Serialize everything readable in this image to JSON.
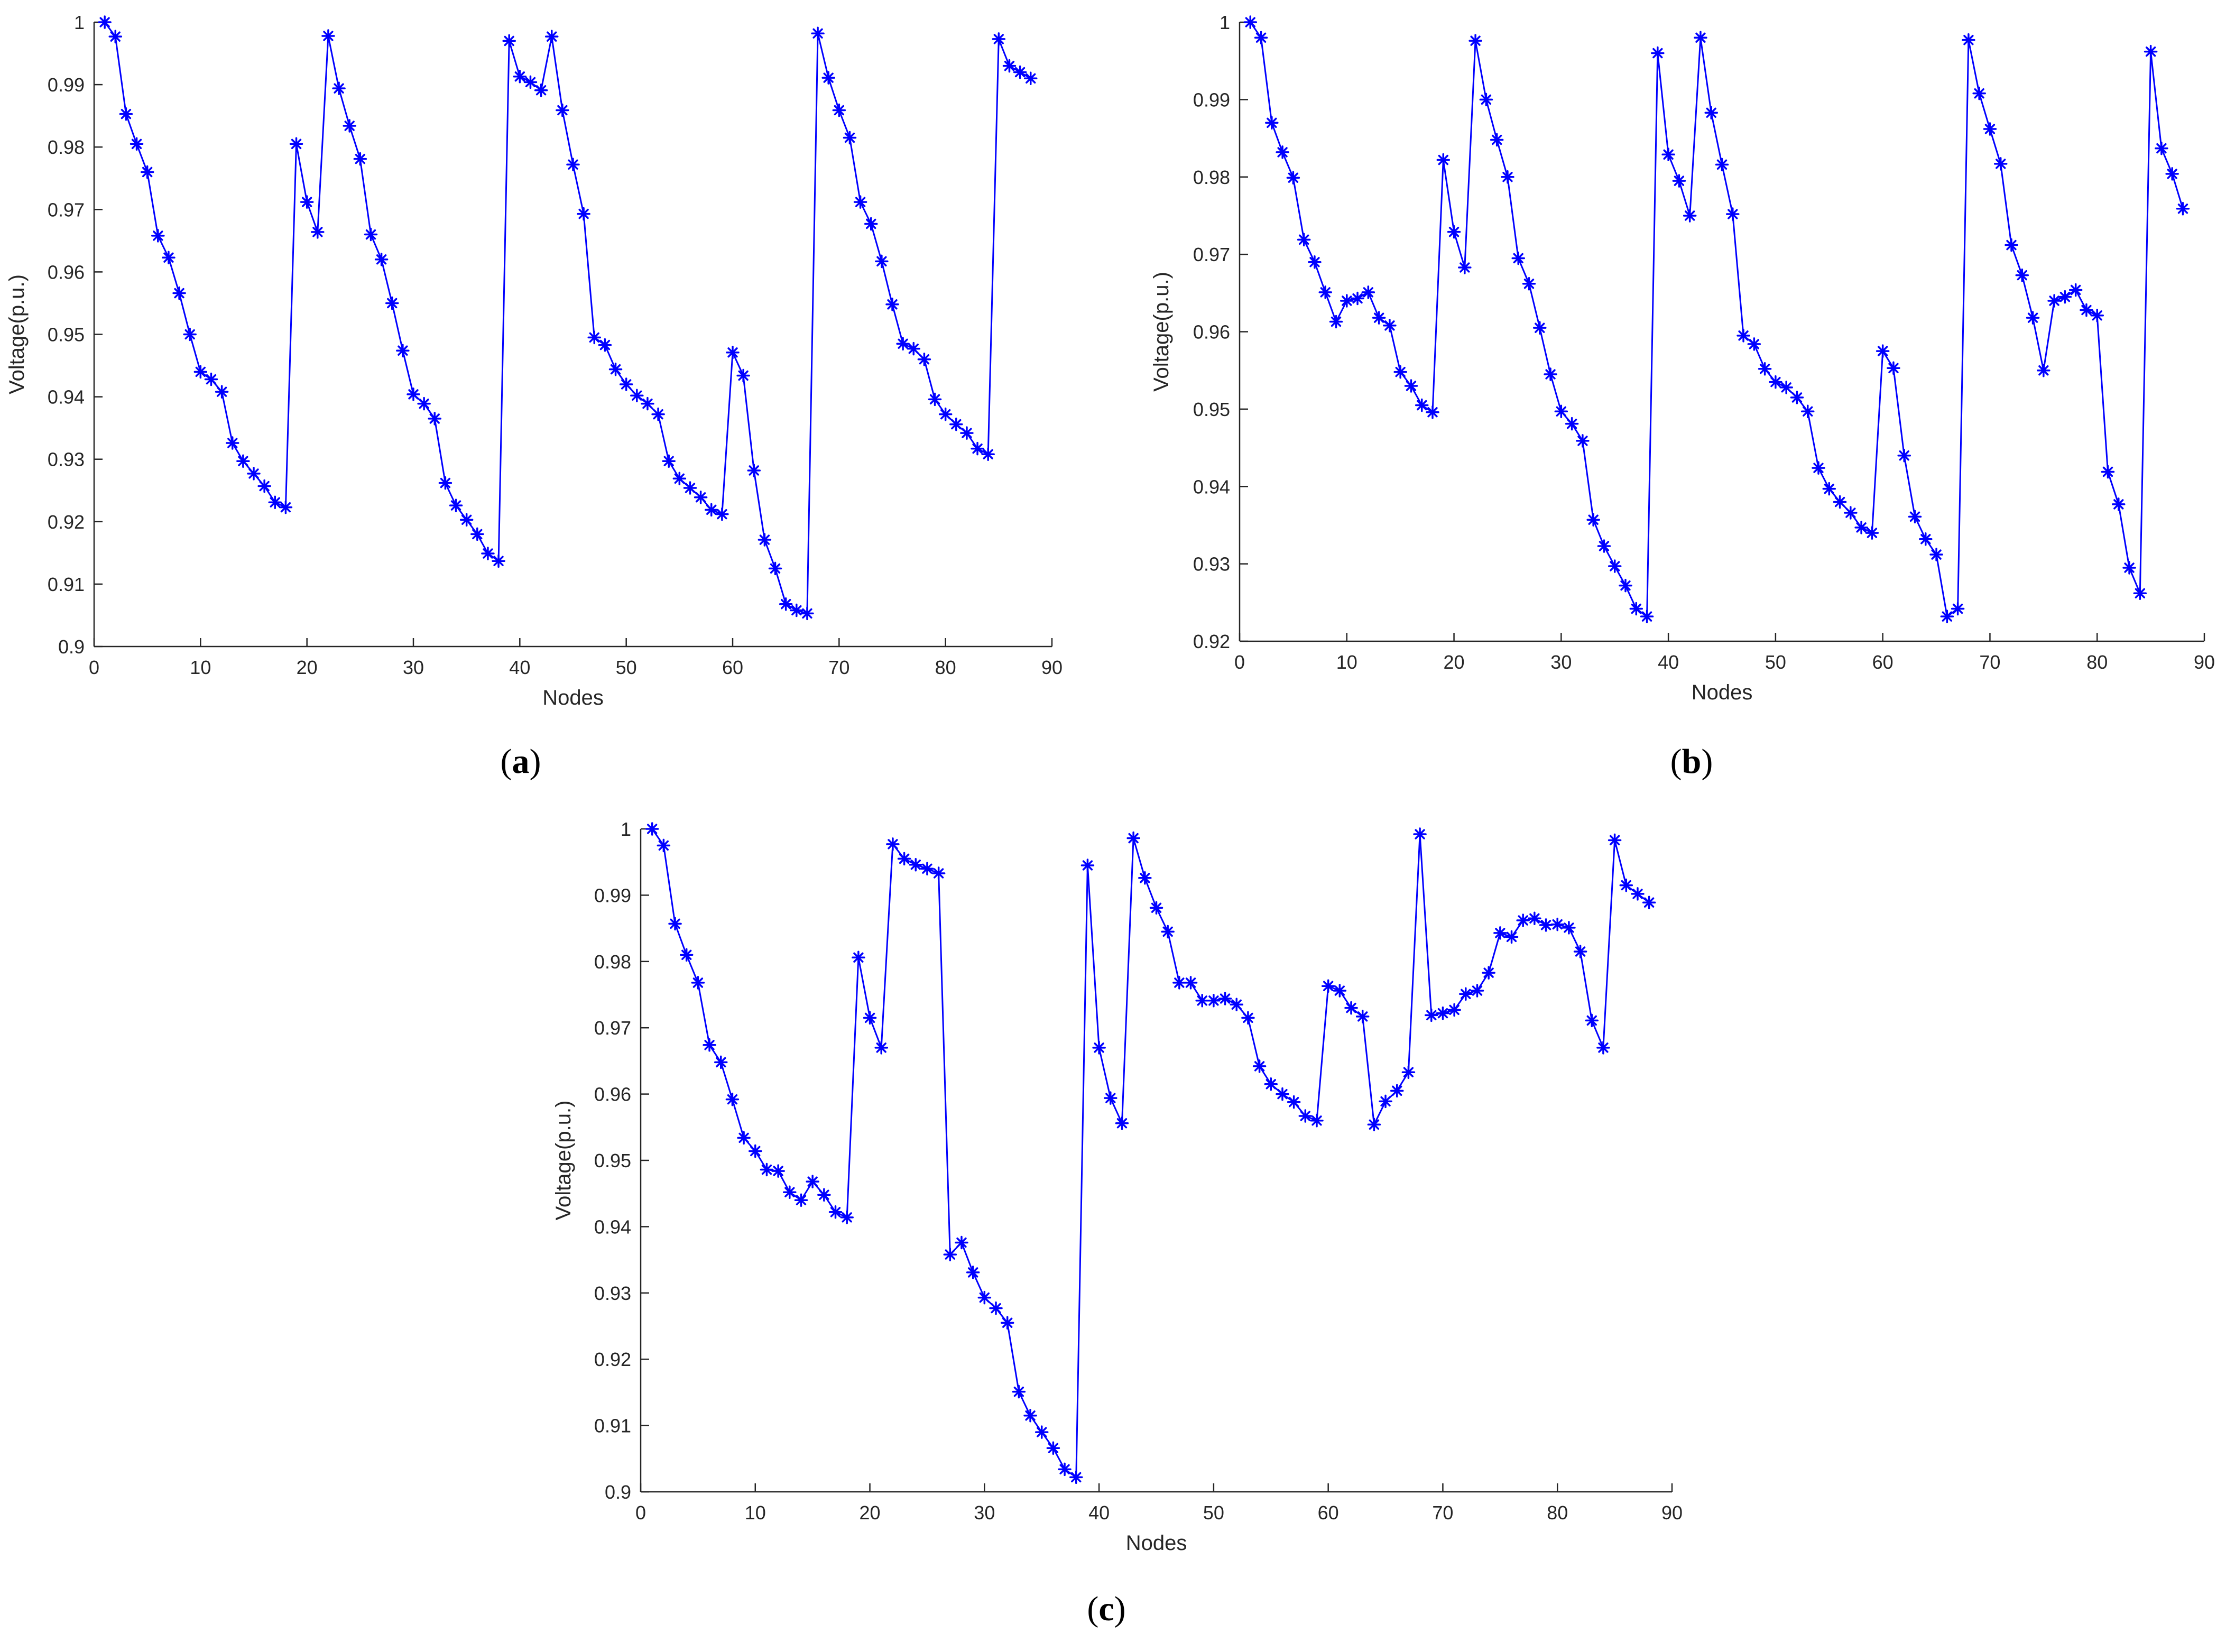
{
  "colors": {
    "series": "#0000ff",
    "axis": "#262626"
  },
  "chart_data": [
    {
      "type": "line",
      "caption": "(a)",
      "caption_open": "(",
      "caption_letter": "a",
      "caption_close": ")",
      "xlabel": "Nodes",
      "ylabel": "Voltage(p.u.)",
      "xlim": [
        0,
        90
      ],
      "ylim": [
        0.9,
        1
      ],
      "xticks": [
        0,
        10,
        20,
        30,
        40,
        50,
        60,
        70,
        80,
        90
      ],
      "xtick_labels": [
        "0",
        "10",
        "20",
        "30",
        "40",
        "50",
        "60",
        "70",
        "80",
        "90"
      ],
      "yticks": [
        0.9,
        0.91,
        0.92,
        0.93,
        0.94,
        0.95,
        0.96,
        0.97,
        0.98,
        0.99,
        1
      ],
      "ytick_labels": [
        "0.9",
        "0.91",
        "0.92",
        "0.93",
        "0.94",
        "0.95",
        "0.96",
        "0.97",
        "0.98",
        "0.99",
        "1"
      ],
      "grid": false,
      "marker": "asterisk",
      "x": [
        1,
        2,
        3,
        4,
        5,
        6,
        7,
        8,
        9,
        10,
        11,
        12,
        13,
        14,
        15,
        16,
        17,
        18,
        19,
        20,
        21,
        22,
        23,
        24,
        25,
        26,
        27,
        28,
        29,
        30,
        31,
        32,
        33,
        34,
        35,
        36,
        37,
        38,
        39,
        40,
        41,
        42,
        43,
        44,
        45,
        46,
        47,
        48,
        49,
        50,
        51,
        52,
        53,
        54,
        55,
        56,
        57,
        58,
        59,
        60,
        61,
        62,
        63,
        64,
        65,
        66,
        67,
        68,
        69,
        70,
        71,
        72,
        73,
        74,
        75,
        76,
        77,
        78,
        79,
        80,
        81,
        82,
        83,
        84,
        85,
        86,
        87,
        88
      ],
      "y": [
        1.0,
        0.9977,
        0.9853,
        0.9805,
        0.976,
        0.9658,
        0.9623,
        0.9566,
        0.95,
        0.944,
        0.9428,
        0.9408,
        0.9326,
        0.9297,
        0.9277,
        0.9257,
        0.9231,
        0.9223,
        0.9805,
        0.9712,
        0.9664,
        0.9978,
        0.9894,
        0.9834,
        0.9781,
        0.966,
        0.962,
        0.955,
        0.9474,
        0.9404,
        0.9389,
        0.9365,
        0.9262,
        0.9226,
        0.9203,
        0.918,
        0.9149,
        0.9137,
        0.997,
        0.9913,
        0.9904,
        0.9891,
        0.9977,
        0.9859,
        0.9772,
        0.9693,
        0.9495,
        0.9483,
        0.9444,
        0.942,
        0.9402,
        0.9389,
        0.9372,
        0.9297,
        0.9269,
        0.9254,
        0.9239,
        0.9219,
        0.9212,
        0.9471,
        0.9434,
        0.9282,
        0.9171,
        0.9125,
        0.9068,
        0.9058,
        0.9053,
        0.9982,
        0.9911,
        0.9859,
        0.9815,
        0.9712,
        0.9677,
        0.9617,
        0.9548,
        0.9485,
        0.9477,
        0.946,
        0.9396,
        0.9372,
        0.9356,
        0.9342,
        0.9317,
        0.9308,
        0.9973,
        0.993,
        0.992,
        0.991
      ]
    },
    {
      "type": "line",
      "caption": "(b)",
      "caption_open": "(",
      "caption_letter": "b",
      "caption_close": ")",
      "xlabel": "Nodes",
      "ylabel": "Voltage(p.u.)",
      "xlim": [
        0,
        90
      ],
      "ylim": [
        0.92,
        1
      ],
      "xticks": [
        0,
        10,
        20,
        30,
        40,
        50,
        60,
        70,
        80,
        90
      ],
      "xtick_labels": [
        "0",
        "10",
        "20",
        "30",
        "40",
        "50",
        "60",
        "70",
        "80",
        "90"
      ],
      "yticks": [
        0.92,
        0.93,
        0.94,
        0.95,
        0.96,
        0.97,
        0.98,
        0.99,
        1
      ],
      "ytick_labels": [
        "0.92",
        "0.93",
        "0.94",
        "0.95",
        "0.96",
        "0.97",
        "0.98",
        "0.99",
        "1"
      ],
      "grid": false,
      "marker": "asterisk",
      "x": [
        1,
        2,
        3,
        4,
        5,
        6,
        7,
        8,
        9,
        10,
        11,
        12,
        13,
        14,
        15,
        16,
        17,
        18,
        19,
        20,
        21,
        22,
        23,
        24,
        25,
        26,
        27,
        28,
        29,
        30,
        31,
        32,
        33,
        34,
        35,
        36,
        37,
        38,
        39,
        40,
        41,
        42,
        43,
        44,
        45,
        46,
        47,
        48,
        49,
        50,
        51,
        52,
        53,
        54,
        55,
        56,
        57,
        58,
        59,
        60,
        61,
        62,
        63,
        64,
        65,
        66,
        67,
        68,
        69,
        70,
        71,
        72,
        73,
        74,
        75,
        76,
        77,
        78,
        79,
        80,
        81,
        82,
        83,
        84,
        85,
        86,
        87,
        88
      ],
      "y": [
        1.0,
        0.998,
        0.987,
        0.9832,
        0.9799,
        0.9719,
        0.969,
        0.9651,
        0.9613,
        0.964,
        0.9643,
        0.9651,
        0.9618,
        0.9608,
        0.9548,
        0.953,
        0.9505,
        0.9496,
        0.9822,
        0.9729,
        0.9683,
        0.9976,
        0.99,
        0.9848,
        0.98,
        0.9695,
        0.9662,
        0.9605,
        0.9545,
        0.9497,
        0.9481,
        0.9459,
        0.9357,
        0.9323,
        0.9297,
        0.9272,
        0.9242,
        0.9232,
        0.996,
        0.9829,
        0.9795,
        0.975,
        0.998,
        0.9883,
        0.9816,
        0.9752,
        0.9595,
        0.9584,
        0.9552,
        0.9535,
        0.9528,
        0.9515,
        0.9497,
        0.9424,
        0.9397,
        0.938,
        0.9366,
        0.9347,
        0.934,
        0.9575,
        0.9553,
        0.944,
        0.9361,
        0.9332,
        0.9312,
        0.9232,
        0.9242,
        0.9977,
        0.9908,
        0.9862,
        0.9817,
        0.9712,
        0.9673,
        0.9618,
        0.955,
        0.964,
        0.9645,
        0.9654,
        0.9628,
        0.9621,
        0.9419,
        0.9377,
        0.9295,
        0.9262,
        0.9962,
        0.9837,
        0.9804,
        0.9759
      ]
    },
    {
      "type": "line",
      "caption": "(c)",
      "caption_open": "(",
      "caption_letter": "c",
      "caption_close": ")",
      "xlabel": "Nodes",
      "ylabel": "Voltage(p.u.)",
      "xlim": [
        0,
        90
      ],
      "ylim": [
        0.9,
        1
      ],
      "xticks": [
        0,
        10,
        20,
        30,
        40,
        50,
        60,
        70,
        80,
        90
      ],
      "xtick_labels": [
        "0",
        "10",
        "20",
        "30",
        "40",
        "50",
        "60",
        "70",
        "80",
        "90"
      ],
      "yticks": [
        0.9,
        0.91,
        0.92,
        0.93,
        0.94,
        0.95,
        0.96,
        0.97,
        0.98,
        0.99,
        1
      ],
      "ytick_labels": [
        "0.9",
        "0.91",
        "0.92",
        "0.93",
        "0.94",
        "0.95",
        "0.96",
        "0.97",
        "0.98",
        "0.99",
        "1"
      ],
      "grid": false,
      "marker": "asterisk",
      "x": [
        1,
        2,
        3,
        4,
        5,
        6,
        7,
        8,
        9,
        10,
        11,
        12,
        13,
        14,
        15,
        16,
        17,
        18,
        19,
        20,
        21,
        22,
        23,
        24,
        25,
        26,
        27,
        28,
        29,
        30,
        31,
        32,
        33,
        34,
        35,
        36,
        37,
        38,
        39,
        40,
        41,
        42,
        43,
        44,
        45,
        46,
        47,
        48,
        49,
        50,
        51,
        52,
        53,
        54,
        55,
        56,
        57,
        58,
        59,
        60,
        61,
        62,
        63,
        64,
        65,
        66,
        67,
        68,
        69,
        70,
        71,
        72,
        73,
        74,
        75,
        76,
        77,
        78,
        79,
        80,
        81,
        82,
        83,
        84,
        85,
        86,
        87,
        88
      ],
      "y": [
        1.0,
        0.9975,
        0.9857,
        0.981,
        0.9768,
        0.9674,
        0.9648,
        0.9592,
        0.9534,
        0.9514,
        0.9486,
        0.9484,
        0.9452,
        0.944,
        0.9468,
        0.9448,
        0.9422,
        0.9414,
        0.9806,
        0.9715,
        0.967,
        0.9977,
        0.9955,
        0.9946,
        0.994,
        0.9933,
        0.9358,
        0.9376,
        0.9331,
        0.9293,
        0.9277,
        0.9255,
        0.9151,
        0.9115,
        0.909,
        0.9066,
        0.9034,
        0.9022,
        0.9945,
        0.967,
        0.9594,
        0.9556,
        0.9986,
        0.9926,
        0.9881,
        0.9845,
        0.9768,
        0.9768,
        0.9741,
        0.9741,
        0.9744,
        0.9735,
        0.9715,
        0.9642,
        0.9615,
        0.96,
        0.9588,
        0.9567,
        0.956,
        0.9763,
        0.9756,
        0.973,
        0.9717,
        0.9554,
        0.9589,
        0.9605,
        0.9633,
        0.9992,
        0.9719,
        0.9722,
        0.9727,
        0.9751,
        0.9756,
        0.9783,
        0.9843,
        0.9837,
        0.9862,
        0.9865,
        0.9855,
        0.9856,
        0.9851,
        0.9815,
        0.9711,
        0.967,
        0.9983,
        0.9915,
        0.9902,
        0.9889
      ]
    }
  ]
}
